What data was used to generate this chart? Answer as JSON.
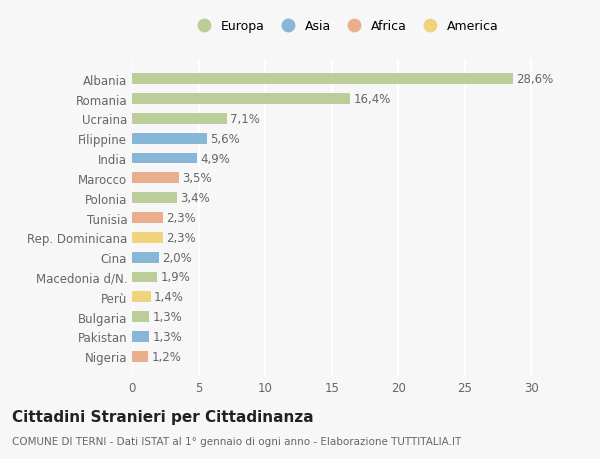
{
  "categories": [
    "Albania",
    "Romania",
    "Ucraina",
    "Filippine",
    "India",
    "Marocco",
    "Polonia",
    "Tunisia",
    "Rep. Dominicana",
    "Cina",
    "Macedonia d/N.",
    "Perù",
    "Bulgaria",
    "Pakistan",
    "Nigeria"
  ],
  "values": [
    28.6,
    16.4,
    7.1,
    5.6,
    4.9,
    3.5,
    3.4,
    2.3,
    2.3,
    2.0,
    1.9,
    1.4,
    1.3,
    1.3,
    1.2
  ],
  "labels": [
    "28,6%",
    "16,4%",
    "7,1%",
    "5,6%",
    "4,9%",
    "3,5%",
    "3,4%",
    "2,3%",
    "2,3%",
    "2,0%",
    "1,9%",
    "1,4%",
    "1,3%",
    "1,3%",
    "1,2%"
  ],
  "continents": [
    "Europa",
    "Europa",
    "Europa",
    "Asia",
    "Asia",
    "Africa",
    "Europa",
    "Africa",
    "America",
    "Asia",
    "Europa",
    "America",
    "Europa",
    "Asia",
    "Africa"
  ],
  "continent_colors": {
    "Europa": "#b5c98e",
    "Asia": "#7bafd4",
    "Africa": "#e8a882",
    "America": "#f0d070"
  },
  "legend_order": [
    "Europa",
    "Asia",
    "Africa",
    "America"
  ],
  "xlim": [
    0,
    32
  ],
  "xticks": [
    0,
    5,
    10,
    15,
    20,
    25,
    30
  ],
  "title": "Cittadini Stranieri per Cittadinanza",
  "subtitle": "COMUNE DI TERNI - Dati ISTAT al 1° gennaio di ogni anno - Elaborazione TUTTITALIA.IT",
  "bg_color": "#f7f7f7",
  "bar_height": 0.55,
  "label_fontsize": 8.5,
  "tick_fontsize": 8.5,
  "title_fontsize": 11,
  "subtitle_fontsize": 7.5
}
